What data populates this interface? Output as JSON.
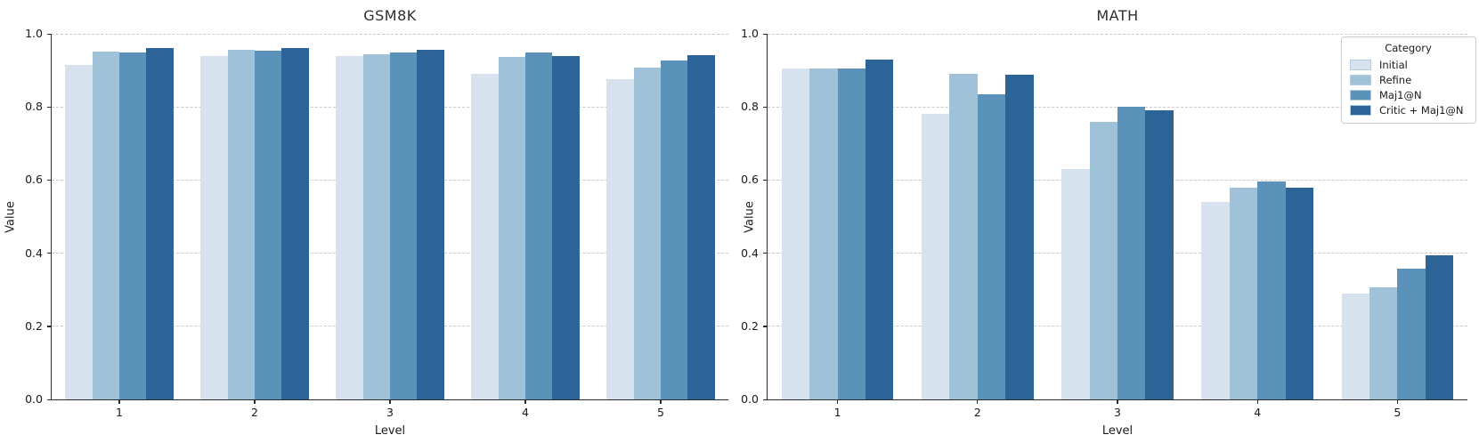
{
  "style": {
    "background": "#ffffff",
    "text_color": "#1a1a1a",
    "title_color": "#2e2e2e",
    "grid_color": "#c9c9c9",
    "spine_color": "#2b2b2b",
    "legend_border_color": "#cccccc"
  },
  "palette": {
    "initial": "#d6e3ef",
    "refine": "#9fc2d9",
    "maj1n": "#5b92ba",
    "critic_maj1n": "#2d6498"
  },
  "legend": {
    "title": "Category",
    "entries": [
      "Initial",
      "Refine",
      "Maj1@N",
      "Critic + Maj1@N"
    ],
    "position": "upper-right"
  },
  "chart_data": [
    {
      "type": "bar",
      "title": "GSM8K",
      "xlabel": "Level",
      "ylabel": "Value",
      "categories": [
        "1",
        "2",
        "3",
        "4",
        "5"
      ],
      "y_ticks": [
        "0.0",
        "0.2",
        "0.4",
        "0.6",
        "0.8",
        "1.0"
      ],
      "ylim": [
        0.0,
        1.0
      ],
      "grid": "horizontal-dashed",
      "legend_visible": false,
      "series": [
        {
          "name": "Initial",
          "color": "#d6e3ef",
          "values": [
            0.915,
            0.94,
            0.938,
            0.89,
            0.876
          ]
        },
        {
          "name": "Refine",
          "color": "#9fc2d9",
          "values": [
            0.951,
            0.957,
            0.944,
            0.937,
            0.907
          ]
        },
        {
          "name": "Maj1@N",
          "color": "#5b92ba",
          "values": [
            0.95,
            0.953,
            0.95,
            0.948,
            0.927
          ]
        },
        {
          "name": "Critic + Maj1@N",
          "color": "#2d6498",
          "values": [
            0.962,
            0.962,
            0.955,
            0.938,
            0.942
          ]
        }
      ]
    },
    {
      "type": "bar",
      "title": "MATH",
      "xlabel": "Level",
      "ylabel": "Value",
      "categories": [
        "1",
        "2",
        "3",
        "4",
        "5"
      ],
      "y_ticks": [
        "0.0",
        "0.2",
        "0.4",
        "0.6",
        "0.8",
        "1.0"
      ],
      "ylim": [
        0.0,
        1.0
      ],
      "grid": "horizontal-dashed",
      "legend_visible": true,
      "series": [
        {
          "name": "Initial",
          "color": "#d6e3ef",
          "values": [
            0.905,
            0.78,
            0.63,
            0.54,
            0.29
          ]
        },
        {
          "name": "Refine",
          "color": "#9fc2d9",
          "values": [
            0.905,
            0.89,
            0.76,
            0.58,
            0.307
          ]
        },
        {
          "name": "Maj1@N",
          "color": "#5b92ba",
          "values": [
            0.905,
            0.835,
            0.8,
            0.595,
            0.357
          ]
        },
        {
          "name": "Critic + Maj1@N",
          "color": "#2d6498",
          "values": [
            0.93,
            0.888,
            0.79,
            0.58,
            0.395
          ]
        }
      ]
    }
  ]
}
